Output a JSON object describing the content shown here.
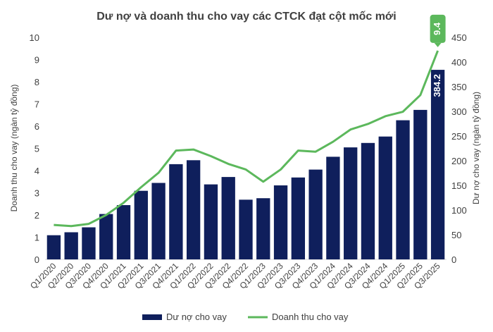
{
  "chart_data": {
    "type": "bar",
    "title": "Dư nợ và doanh thu cho vay các CTCK đạt cột mốc mới",
    "categories": [
      "Q1/2020",
      "Q2/2020",
      "Q3/2020",
      "Q4/2020",
      "Q1/2021",
      "Q2/2021",
      "Q3/2021",
      "Q4/2021",
      "Q1/2022",
      "Q2/2022",
      "Q3/2022",
      "Q4/2022",
      "Q1/2023",
      "Q2/2023",
      "Q3/2023",
      "Q4/2023",
      "Q1/2024",
      "Q2/2024",
      "Q3/2024",
      "Q4/2024",
      "Q1/2025",
      "Q2/2025",
      "Q3/2025"
    ],
    "ylabel_left": "Doanh thu cho vay (ngàn tỷ đồng)",
    "ylabel_right": "Dư nợ cho vay (ngàn tỷ đồng)",
    "ylim_left": [
      0,
      10
    ],
    "ylim_right": [
      0,
      450
    ],
    "yticks_left": [
      "0",
      "1",
      "2",
      "3",
      "4",
      "5",
      "6",
      "7",
      "8",
      "9",
      "10"
    ],
    "yticks_right": [
      "0",
      "50",
      "100",
      "150",
      "200",
      "250",
      "300",
      "350",
      "400",
      "450"
    ],
    "grid": false,
    "legend_position": "bottom",
    "series": [
      {
        "name": "Dư nợ cho vay",
        "type": "bar",
        "axis": "right",
        "color": "#0f1f5c",
        "values": [
          49,
          55,
          65,
          92,
          110,
          139,
          155,
          193,
          201,
          152,
          167,
          121,
          124,
          150,
          166,
          182,
          208,
          227,
          236,
          249,
          282,
          303,
          384.2
        ]
      },
      {
        "name": "Doanh thu cho vay",
        "type": "line",
        "axis": "left",
        "color": "#5cb85c",
        "values": [
          1.55,
          1.5,
          1.6,
          2.0,
          2.55,
          3.25,
          3.9,
          4.9,
          4.95,
          4.65,
          4.3,
          4.05,
          3.5,
          4.05,
          4.9,
          4.85,
          5.3,
          5.85,
          6.1,
          6.45,
          6.65,
          7.4,
          9.4
        ]
      }
    ],
    "annotations": [
      {
        "series": "Dư nợ cho vay",
        "index": 22,
        "label": "384.2"
      },
      {
        "series": "Doanh thu cho vay",
        "index": 22,
        "label": "9.4"
      }
    ]
  }
}
